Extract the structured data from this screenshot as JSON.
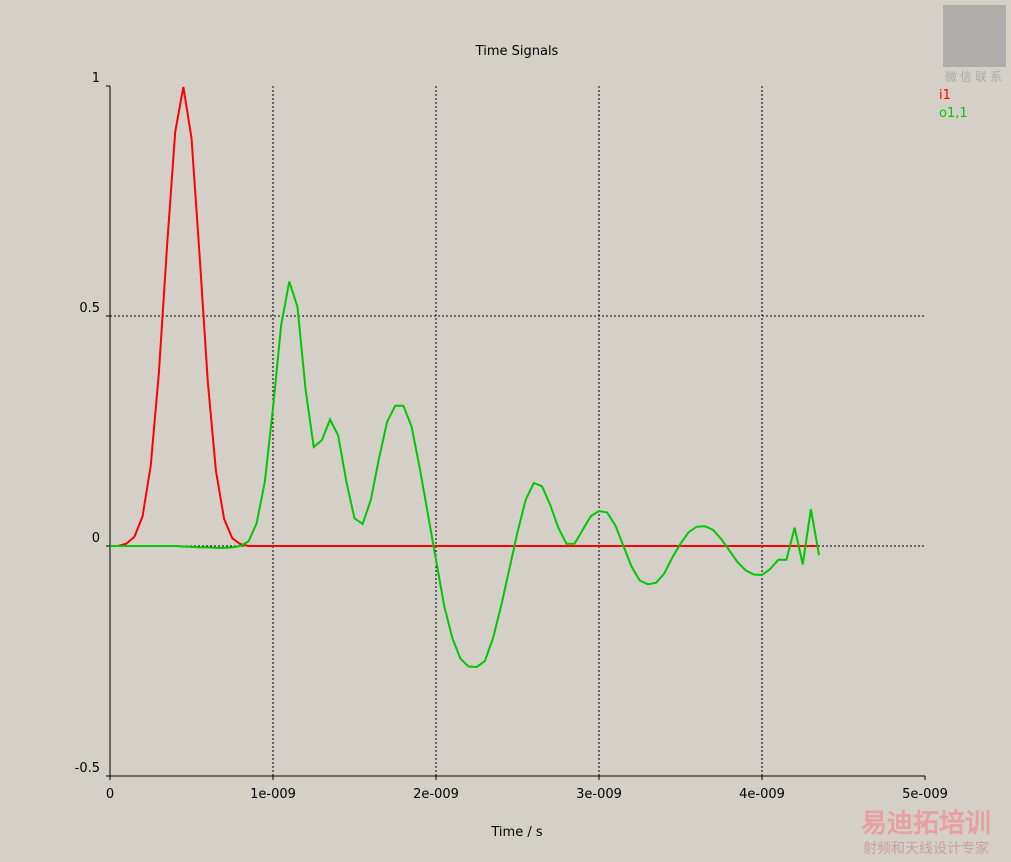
{
  "chart_data": {
    "type": "line",
    "title": "Time Signals",
    "x_label": "Time / s",
    "x": [
      0,
      5e-11,
      1e-10,
      1.5e-10,
      2e-10,
      2.5e-10,
      3e-10,
      3.5e-10,
      4e-10,
      4.5e-10,
      5e-10,
      5.5e-10,
      6e-10,
      6.5e-10,
      7e-10,
      7.5e-10,
      8e-10,
      8.5e-10,
      9e-10,
      9.5e-10,
      1e-09,
      1.05e-09,
      1.1e-09,
      1.15e-09,
      1.2e-09,
      1.25e-09,
      1.3e-09,
      1.35e-09,
      1.4e-09,
      1.45e-09,
      1.5e-09,
      1.55e-09,
      1.6e-09,
      1.65e-09,
      1.7e-09,
      1.75e-09,
      1.8e-09,
      1.85e-09,
      1.9e-09,
      1.95e-09,
      2e-09,
      2.05e-09,
      2.1e-09,
      2.15e-09,
      2.2e-09,
      2.25e-09,
      2.3e-09,
      2.35e-09,
      2.4e-09,
      2.45e-09,
      2.5e-09,
      2.55e-09,
      2.6e-09,
      2.65e-09,
      2.7e-09,
      2.75e-09,
      2.8e-09,
      2.85e-09,
      2.9e-09,
      2.95e-09,
      3e-09,
      3.05e-09,
      3.1e-09,
      3.15e-09,
      3.2e-09,
      3.25e-09,
      3.3e-09,
      3.35e-09,
      3.4e-09,
      3.45e-09,
      3.5e-09,
      3.55e-09,
      3.6e-09,
      3.65e-09,
      3.7e-09,
      3.75e-09,
      3.8e-09,
      3.85e-09,
      3.9e-09,
      3.95e-09,
      4e-09,
      4.05e-09,
      4.1e-09,
      4.15e-09,
      4.2e-09,
      4.25e-09,
      4.3e-09,
      4.35e-09
    ],
    "series": [
      {
        "name": "i1",
        "color": "#ff0000",
        "values": [
          0,
          0,
          0.005,
          0.02,
          0.065,
          0.175,
          0.377,
          0.652,
          0.9,
          0.998,
          0.887,
          0.63,
          0.357,
          0.163,
          0.059,
          0.017,
          0.004,
          0,
          0,
          0,
          0,
          0,
          0,
          0,
          0,
          0,
          0,
          0,
          0,
          0,
          0,
          0,
          0,
          0,
          0,
          0,
          0,
          0,
          0,
          0,
          0,
          0,
          0,
          0,
          0,
          0,
          0,
          0,
          0,
          0,
          0,
          0,
          0,
          0,
          0,
          0,
          0,
          0,
          0,
          0,
          0,
          0,
          0,
          0,
          0,
          0,
          0,
          0,
          0,
          0,
          0,
          0,
          0,
          0,
          0,
          0,
          0,
          0,
          0,
          0,
          0,
          0,
          0,
          0,
          0,
          0,
          0,
          0
        ]
      },
      {
        "name": "o1,1",
        "color": "#00c800",
        "values": [
          0,
          0,
          0,
          0,
          0,
          0,
          0,
          0,
          0,
          -0.001,
          -0.002,
          -0.003,
          -0.003,
          -0.004,
          -0.004,
          -0.003,
          0,
          0.01,
          0.05,
          0.14,
          0.3,
          0.48,
          0.575,
          0.52,
          0.34,
          0.215,
          0.23,
          0.275,
          0.24,
          0.14,
          0.06,
          0.048,
          0.1,
          0.19,
          0.27,
          0.305,
          0.305,
          0.26,
          0.17,
          0.07,
          -0.03,
          -0.13,
          -0.2,
          -0.245,
          -0.262,
          -0.263,
          -0.25,
          -0.2,
          -0.13,
          -0.05,
          0.03,
          0.1,
          0.137,
          0.13,
          0.09,
          0.04,
          0.005,
          0.005,
          0.035,
          0.065,
          0.076,
          0.073,
          0.045,
          0,
          -0.045,
          -0.075,
          -0.083,
          -0.08,
          -0.06,
          -0.025,
          0.005,
          0.03,
          0.042,
          0.043,
          0.035,
          0.015,
          -0.01,
          -0.035,
          -0.053,
          -0.062,
          -0.063,
          -0.05,
          -0.03,
          -0.03,
          0.04,
          -0.04,
          0.08,
          -0.02
        ]
      }
    ],
    "xlim": [
      0,
      5e-09
    ],
    "xticks": [
      0,
      {
        "value": 1e-09,
        "label": "1e-009"
      },
      {
        "value": 2e-09,
        "label": "2e-009"
      },
      {
        "value": 3e-09,
        "label": "3e-009"
      },
      {
        "value": 4e-09,
        "label": "4e-009"
      },
      {
        "value": 5e-09,
        "label": "5e-009"
      }
    ],
    "ylim": [
      -0.5,
      1
    ],
    "yticks": [
      -0.5,
      0,
      0.5,
      1
    ],
    "grid": true,
    "legend": "top-right"
  },
  "watermark": {
    "qr_caption": "微信联系",
    "brand": "易迪拓培训",
    "slogan": "射频和天线设计专家"
  }
}
